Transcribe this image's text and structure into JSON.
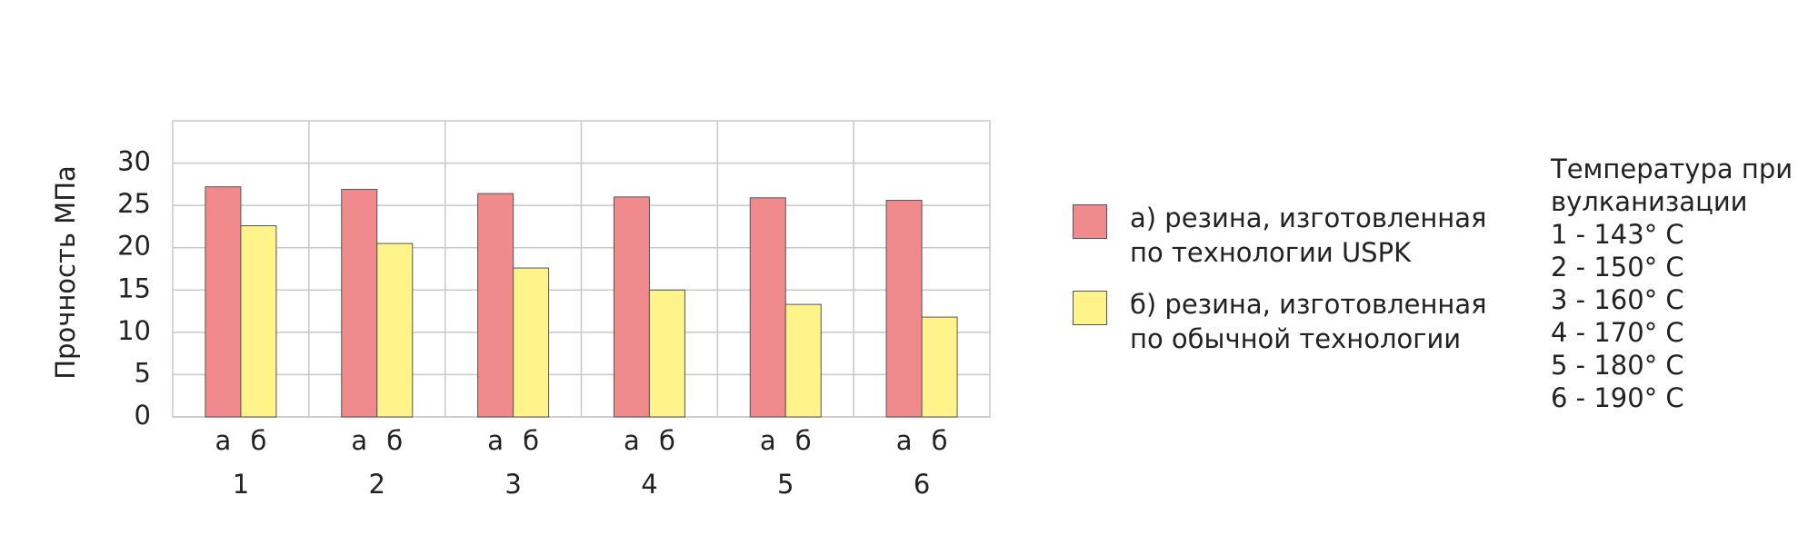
{
  "chart_data": {
    "type": "bar",
    "y_label": "Прочность МПа",
    "categories": [
      "1",
      "2",
      "3",
      "4",
      "5",
      "6"
    ],
    "bar_labels": [
      "а",
      "б"
    ],
    "series": [
      {
        "name": "а) резина, изготовленная\n    по технологии USPK",
        "color": "#f08a8c",
        "values": [
          27.2,
          26.9,
          26.4,
          26.0,
          25.9,
          25.6
        ]
      },
      {
        "name": "б) резина, изготовленная\n    по обычной технологии",
        "color": "#fff38a",
        "values": [
          22.6,
          20.5,
          17.6,
          15.0,
          13.3,
          11.8
        ]
      }
    ],
    "ylim": [
      0,
      35
    ],
    "yticks": [
      0,
      5,
      10,
      15,
      20,
      25,
      30
    ],
    "grid": true,
    "annotation": {
      "title": "Температура при\nвулканизации",
      "items": [
        "1 - 143° C",
        "2 - 150° C",
        "3 - 160° C",
        "4 - 170° C",
        "5 - 180° C",
        "6 - 190° C"
      ]
    }
  }
}
